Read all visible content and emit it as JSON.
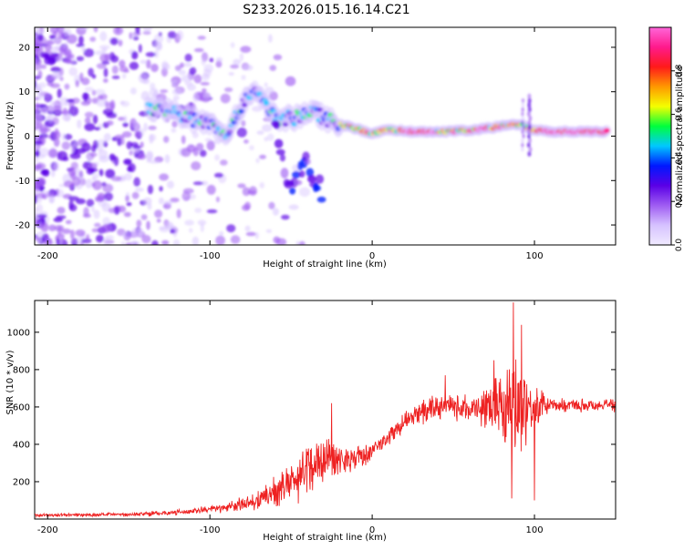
{
  "title": "S233.2026.015.16.14.C21",
  "chart_data": [
    {
      "type": "heatmap",
      "xlabel": "Height of straight line (km)",
      "ylabel": "Frequency (Hz)",
      "xlim": [
        -208,
        150
      ],
      "ylim": [
        -24.5,
        24.5
      ],
      "x_ticks": [
        -200,
        -100,
        0,
        100
      ],
      "y_ticks": [
        -20,
        -10,
        0,
        10,
        20
      ],
      "colorbar": {
        "label": "Normalized spectral amplitude",
        "range": [
          0,
          1
        ],
        "ticks": [
          "0.0",
          "0.2",
          "0.4",
          "0.6",
          "0.8"
        ],
        "tick_values": [
          0,
          0.2,
          0.4,
          0.6,
          0.8
        ],
        "colors": [
          "#f0eaff",
          "#d6c2ff",
          "#9f5cf2",
          "#5a00e6",
          "#0018ff",
          "#00c8ff",
          "#00ff3c",
          "#f4ff00",
          "#ff9800",
          "#ff1a1a",
          "#ff1a8c",
          "#ff66d9"
        ]
      },
      "ridge_points": [
        {
          "x": -138,
          "y": 6.5
        },
        {
          "x": -125,
          "y": 5.5
        },
        {
          "x": -112,
          "y": 4
        },
        {
          "x": -100,
          "y": 3
        },
        {
          "x": -88,
          "y": 0.5
        },
        {
          "x": -78,
          "y": 9
        },
        {
          "x": -70,
          "y": 10
        },
        {
          "x": -60,
          "y": 4
        },
        {
          "x": -48,
          "y": 4
        },
        {
          "x": -38,
          "y": 5.5
        },
        {
          "x": -28,
          "y": 4
        },
        {
          "x": -18,
          "y": 2.5
        },
        {
          "x": -8,
          "y": 1.5
        },
        {
          "x": 0,
          "y": 0.5
        },
        {
          "x": 10,
          "y": 1.5
        },
        {
          "x": 25,
          "y": 1
        },
        {
          "x": 45,
          "y": 1
        },
        {
          "x": 65,
          "y": 1.5
        },
        {
          "x": 85,
          "y": 2.5
        },
        {
          "x": 92,
          "y": 2.5
        },
        {
          "x": 98,
          "y": 1.5
        },
        {
          "x": 110,
          "y": 1
        },
        {
          "x": 125,
          "y": 1
        },
        {
          "x": 145,
          "y": 1
        }
      ],
      "branch_points": [
        {
          "x": -60,
          "y": 2
        },
        {
          "x": -55,
          "y": -5
        },
        {
          "x": -50,
          "y": -12
        },
        {
          "x": -45,
          "y": -8
        },
        {
          "x": -40,
          "y": -6
        },
        {
          "x": -35,
          "y": -10
        },
        {
          "x": -30,
          "y": -14
        }
      ]
    },
    {
      "type": "line",
      "xlabel": "Height of straight line (km)",
      "ylabel": "SNR (10 * v/v)",
      "xlim": [
        -208,
        150
      ],
      "ylim": [
        0,
        1170
      ],
      "x_ticks": [
        -200,
        -100,
        0,
        100
      ],
      "y_ticks": [
        200,
        400,
        600,
        800,
        1000
      ],
      "series": [
        {
          "name": "SNR",
          "color": "#ee2222",
          "envelope": [
            {
              "x": -208,
              "y": 20,
              "amp": 10
            },
            {
              "x": -150,
              "y": 25,
              "amp": 12
            },
            {
              "x": -120,
              "y": 35,
              "amp": 18
            },
            {
              "x": -90,
              "y": 60,
              "amp": 30
            },
            {
              "x": -70,
              "y": 100,
              "amp": 60
            },
            {
              "x": -55,
              "y": 170,
              "amp": 110
            },
            {
              "x": -40,
              "y": 260,
              "amp": 170
            },
            {
              "x": -30,
              "y": 330,
              "amp": 160
            },
            {
              "x": -20,
              "y": 320,
              "amp": 110
            },
            {
              "x": -10,
              "y": 330,
              "amp": 80
            },
            {
              "x": 0,
              "y": 360,
              "amp": 60
            },
            {
              "x": 10,
              "y": 440,
              "amp": 60
            },
            {
              "x": 20,
              "y": 520,
              "amp": 60
            },
            {
              "x": 30,
              "y": 570,
              "amp": 70
            },
            {
              "x": 40,
              "y": 600,
              "amp": 80
            },
            {
              "x": 50,
              "y": 600,
              "amp": 80
            },
            {
              "x": 60,
              "y": 590,
              "amp": 80
            },
            {
              "x": 70,
              "y": 600,
              "amp": 120
            },
            {
              "x": 80,
              "y": 620,
              "amp": 260
            },
            {
              "x": 88,
              "y": 640,
              "amp": 330
            },
            {
              "x": 95,
              "y": 620,
              "amp": 260
            },
            {
              "x": 100,
              "y": 600,
              "amp": 140
            },
            {
              "x": 110,
              "y": 610,
              "amp": 40
            },
            {
              "x": 130,
              "y": 610,
              "amp": 40
            },
            {
              "x": 150,
              "y": 610,
              "amp": 40
            }
          ],
          "peaks": [
            {
              "x": -25,
              "y": 620
            },
            {
              "x": 45,
              "y": 770
            },
            {
              "x": 75,
              "y": 850
            },
            {
              "x": 87,
              "y": 1160
            },
            {
              "x": 92,
              "y": 1040
            },
            {
              "x": 100,
              "y": 100
            },
            {
              "x": 86,
              "y": 110
            }
          ]
        }
      ]
    }
  ]
}
